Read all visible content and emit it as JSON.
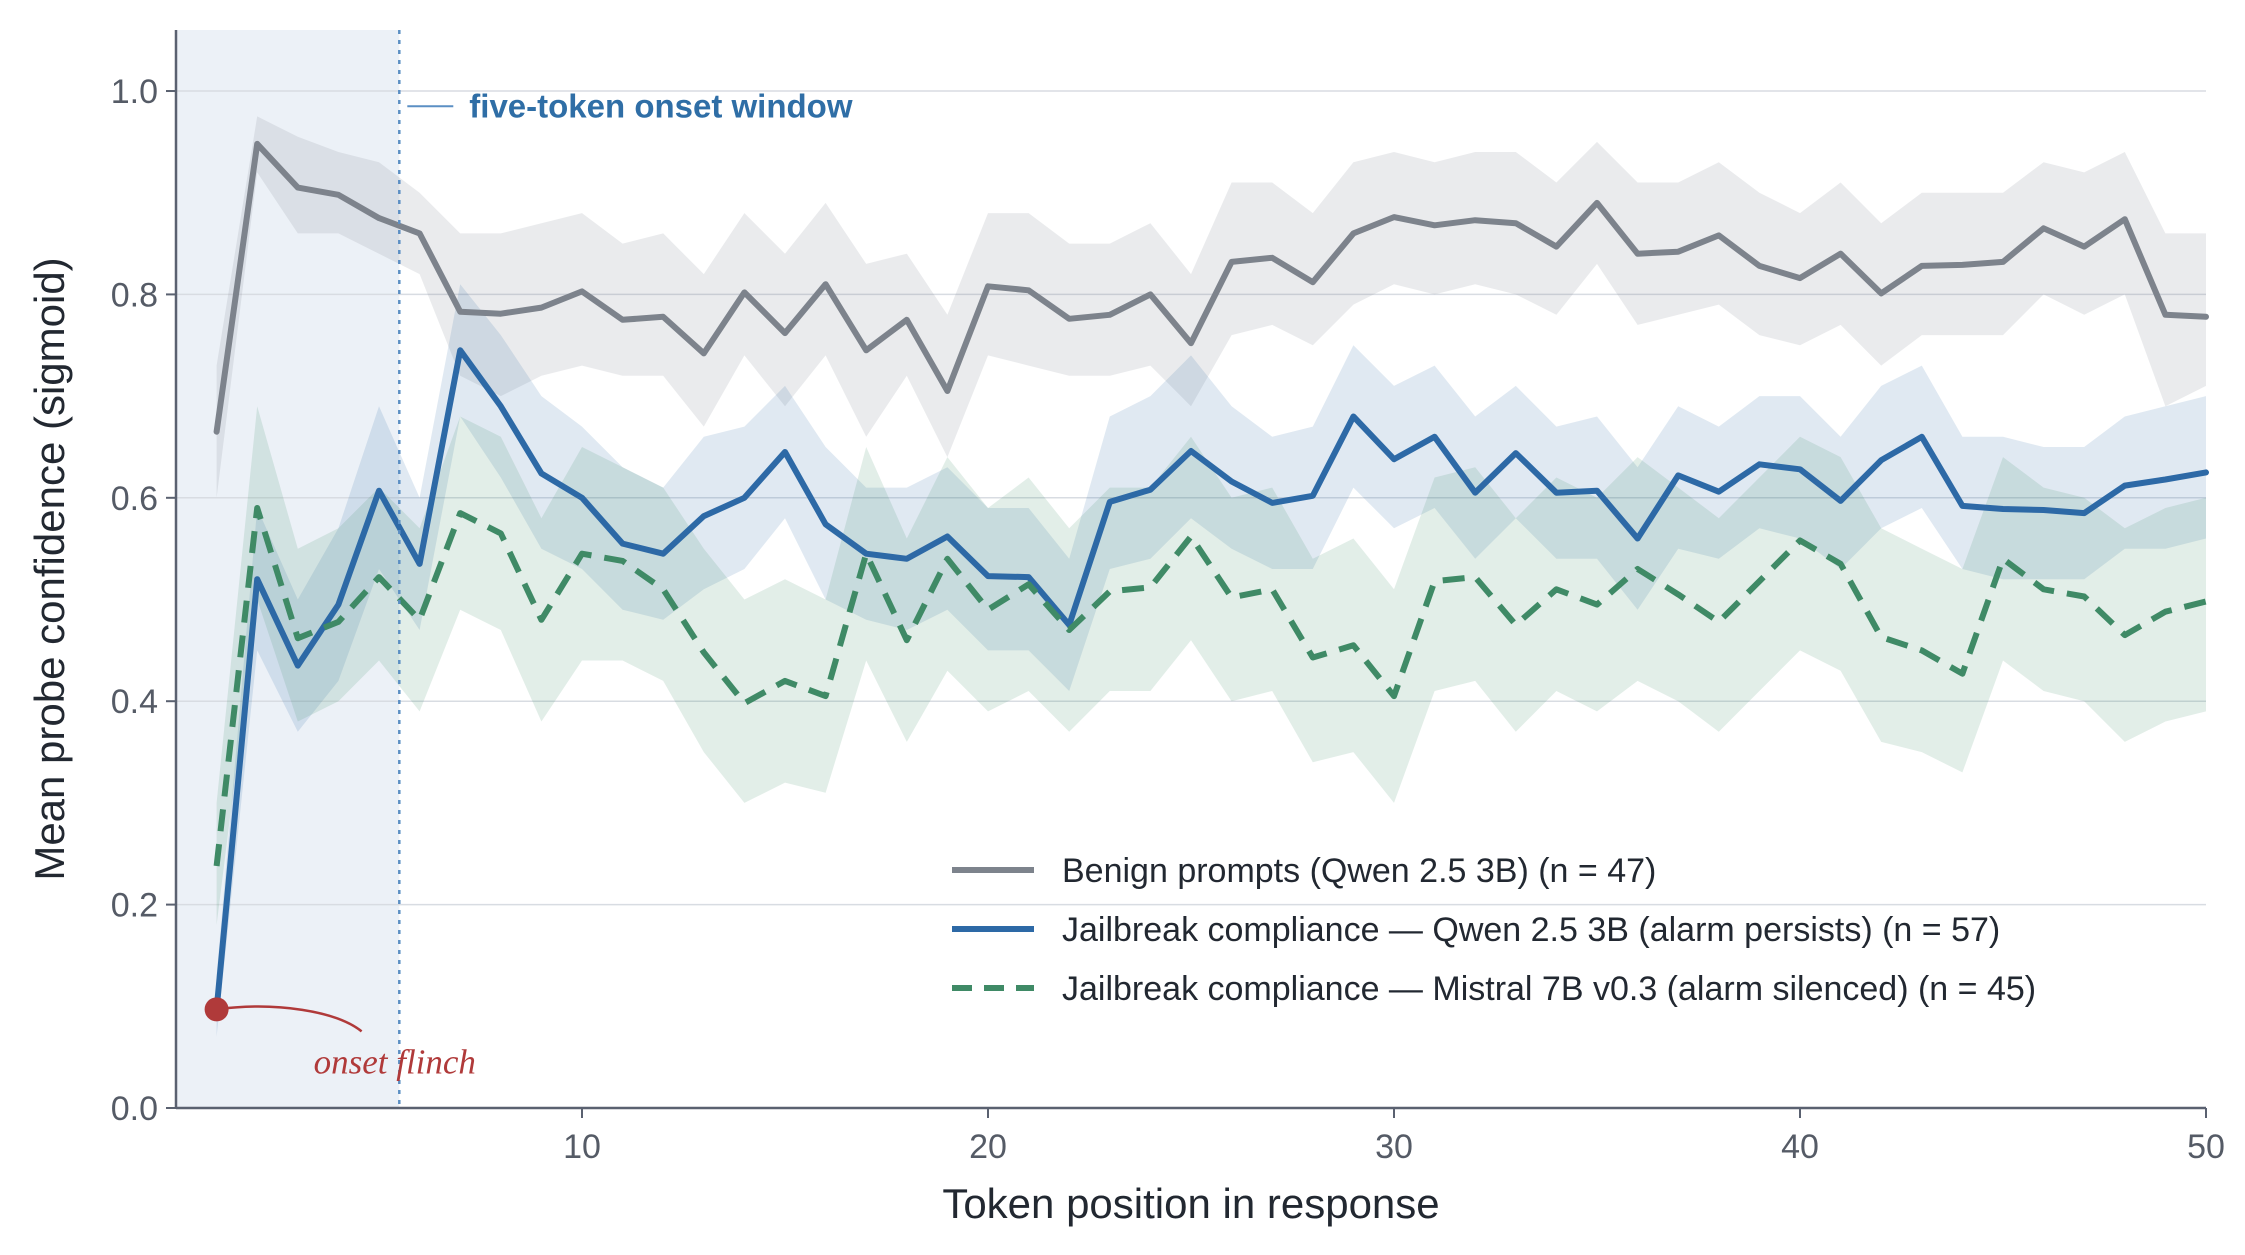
{
  "chart_data": {
    "type": "line",
    "title": "",
    "xlabel": "Token position in response",
    "ylabel": "Mean probe confidence (sigmoid)",
    "xlim": [
      0,
      50
    ],
    "ylim": [
      0.0,
      1.06
    ],
    "x_ticks": [
      10,
      20,
      30,
      40,
      50
    ],
    "y_ticks": [
      "0.0",
      "0.2",
      "0.4",
      "0.6",
      "0.8",
      "1.0"
    ],
    "grid": "horizontal",
    "legend_position": "lower-right",
    "x": [
      1,
      2,
      3,
      4,
      5,
      6,
      7,
      8,
      9,
      10,
      11,
      12,
      13,
      14,
      15,
      16,
      17,
      18,
      19,
      20,
      21,
      22,
      23,
      24,
      25,
      26,
      27,
      28,
      29,
      30,
      31,
      32,
      33,
      34,
      35,
      36,
      37,
      38,
      39,
      40,
      41,
      42,
      43,
      44,
      45,
      46,
      47,
      48,
      49,
      50
    ],
    "series": [
      {
        "name": "Benign prompts (Qwen 2.5 3B)  (n = 47)",
        "color": "#7d838c",
        "style": "solid",
        "values": [
          0.665,
          0.948,
          0.905,
          0.898,
          0.875,
          0.86,
          0.783,
          0.781,
          0.787,
          0.803,
          0.775,
          0.778,
          0.742,
          0.802,
          0.762,
          0.81,
          0.745,
          0.775,
          0.705,
          0.808,
          0.804,
          0.776,
          0.78,
          0.8,
          0.752,
          0.832,
          0.836,
          0.812,
          0.86,
          0.876,
          0.868,
          0.873,
          0.87,
          0.847,
          0.89,
          0.84,
          0.842,
          0.858,
          0.828,
          0.816,
          0.84,
          0.801,
          0.828,
          0.829,
          0.832,
          0.865,
          0.847,
          0.874,
          0.78,
          0.778
        ],
        "lower": [
          0.6,
          0.92,
          0.86,
          0.86,
          0.84,
          0.82,
          0.72,
          0.7,
          0.72,
          0.73,
          0.72,
          0.72,
          0.67,
          0.74,
          0.69,
          0.74,
          0.66,
          0.72,
          0.64,
          0.74,
          0.73,
          0.72,
          0.72,
          0.73,
          0.69,
          0.76,
          0.77,
          0.75,
          0.79,
          0.81,
          0.8,
          0.81,
          0.8,
          0.78,
          0.83,
          0.77,
          0.78,
          0.79,
          0.76,
          0.75,
          0.77,
          0.73,
          0.76,
          0.76,
          0.76,
          0.8,
          0.78,
          0.8,
          0.69,
          0.71
        ],
        "upper": [
          0.73,
          0.975,
          0.955,
          0.94,
          0.93,
          0.9,
          0.86,
          0.86,
          0.87,
          0.88,
          0.85,
          0.86,
          0.82,
          0.88,
          0.84,
          0.89,
          0.83,
          0.84,
          0.78,
          0.88,
          0.88,
          0.85,
          0.85,
          0.87,
          0.82,
          0.91,
          0.91,
          0.88,
          0.93,
          0.94,
          0.93,
          0.94,
          0.94,
          0.91,
          0.95,
          0.91,
          0.91,
          0.93,
          0.9,
          0.88,
          0.91,
          0.87,
          0.9,
          0.9,
          0.9,
          0.93,
          0.92,
          0.94,
          0.86,
          0.86
        ]
      },
      {
        "name": "Jailbreak compliance — Qwen 2.5 3B (alarm persists)  (n = 57)",
        "color": "#2d69a6",
        "style": "solid",
        "values": [
          0.097,
          0.52,
          0.435,
          0.495,
          0.607,
          0.535,
          0.745,
          0.69,
          0.624,
          0.6,
          0.555,
          0.545,
          0.582,
          0.6,
          0.645,
          0.574,
          0.545,
          0.54,
          0.562,
          0.523,
          0.522,
          0.475,
          0.596,
          0.608,
          0.646,
          0.616,
          0.595,
          0.602,
          0.68,
          0.638,
          0.66,
          0.605,
          0.644,
          0.605,
          0.607,
          0.56,
          0.622,
          0.606,
          0.633,
          0.628,
          0.597,
          0.637,
          0.66,
          0.592,
          0.589,
          0.588,
          0.585,
          0.612,
          0.618,
          0.625
        ],
        "lower": [
          0.07,
          0.45,
          0.37,
          0.42,
          0.53,
          0.47,
          0.68,
          0.62,
          0.55,
          0.53,
          0.49,
          0.48,
          0.51,
          0.53,
          0.58,
          0.5,
          0.48,
          0.47,
          0.49,
          0.45,
          0.45,
          0.41,
          0.53,
          0.54,
          0.58,
          0.55,
          0.53,
          0.53,
          0.61,
          0.57,
          0.59,
          0.54,
          0.58,
          0.54,
          0.54,
          0.49,
          0.55,
          0.54,
          0.57,
          0.56,
          0.53,
          0.57,
          0.59,
          0.53,
          0.52,
          0.52,
          0.52,
          0.55,
          0.55,
          0.56
        ],
        "upper": [
          0.13,
          0.59,
          0.5,
          0.57,
          0.69,
          0.6,
          0.81,
          0.76,
          0.7,
          0.67,
          0.63,
          0.61,
          0.66,
          0.67,
          0.71,
          0.65,
          0.61,
          0.61,
          0.63,
          0.59,
          0.59,
          0.54,
          0.68,
          0.7,
          0.74,
          0.69,
          0.66,
          0.67,
          0.75,
          0.71,
          0.73,
          0.68,
          0.71,
          0.67,
          0.68,
          0.63,
          0.69,
          0.67,
          0.7,
          0.7,
          0.66,
          0.71,
          0.73,
          0.66,
          0.66,
          0.65,
          0.65,
          0.68,
          0.69,
          0.7
        ]
      },
      {
        "name": "Jailbreak compliance — Mistral 7B v0.3 (alarm silenced)  (n = 45)",
        "color": "#3f8a66",
        "style": "dashed",
        "values": [
          0.238,
          0.59,
          0.462,
          0.478,
          0.522,
          0.48,
          0.585,
          0.565,
          0.48,
          0.545,
          0.538,
          0.51,
          0.448,
          0.398,
          0.42,
          0.405,
          0.545,
          0.46,
          0.54,
          0.49,
          0.515,
          0.47,
          0.508,
          0.512,
          0.562,
          0.502,
          0.51,
          0.443,
          0.455,
          0.405,
          0.518,
          0.522,
          0.475,
          0.51,
          0.495,
          0.53,
          0.505,
          0.478,
          0.518,
          0.558,
          0.535,
          0.463,
          0.45,
          0.427,
          0.54,
          0.51,
          0.503,
          0.465,
          0.488,
          0.498
        ],
        "lower": [
          0.18,
          0.5,
          0.38,
          0.4,
          0.44,
          0.39,
          0.49,
          0.47,
          0.38,
          0.44,
          0.44,
          0.42,
          0.35,
          0.3,
          0.32,
          0.31,
          0.44,
          0.36,
          0.43,
          0.39,
          0.41,
          0.37,
          0.41,
          0.41,
          0.46,
          0.4,
          0.41,
          0.34,
          0.35,
          0.3,
          0.41,
          0.42,
          0.37,
          0.41,
          0.39,
          0.42,
          0.4,
          0.37,
          0.41,
          0.45,
          0.43,
          0.36,
          0.35,
          0.33,
          0.44,
          0.41,
          0.4,
          0.36,
          0.38,
          0.39
        ],
        "upper": [
          0.3,
          0.69,
          0.55,
          0.57,
          0.61,
          0.57,
          0.68,
          0.66,
          0.58,
          0.65,
          0.63,
          0.61,
          0.55,
          0.5,
          0.52,
          0.5,
          0.65,
          0.56,
          0.64,
          0.59,
          0.62,
          0.57,
          0.61,
          0.61,
          0.66,
          0.6,
          0.61,
          0.54,
          0.56,
          0.51,
          0.62,
          0.63,
          0.58,
          0.62,
          0.6,
          0.64,
          0.61,
          0.58,
          0.62,
          0.66,
          0.64,
          0.57,
          0.55,
          0.53,
          0.64,
          0.61,
          0.6,
          0.57,
          0.59,
          0.6
        ]
      }
    ],
    "shaded_region": {
      "x_start": 0,
      "x_end": 5.5,
      "color": "#dfe7f2"
    },
    "annotations": [
      {
        "text": "five-token onset window",
        "x": 5.5,
        "y": 1.0
      },
      {
        "text": "onset flinch",
        "x": 1,
        "y": 0.097,
        "color": "#b03a3a"
      }
    ]
  }
}
